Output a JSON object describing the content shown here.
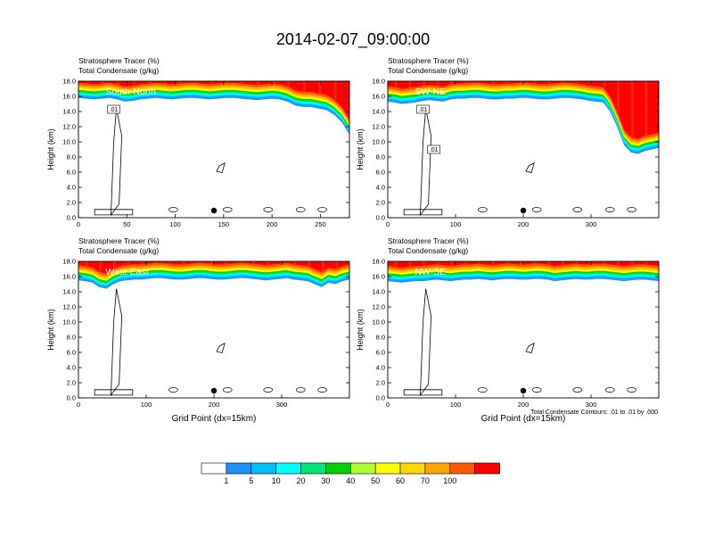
{
  "figure": {
    "title": "2014-02-07_09:00:00",
    "footnote": "Total Condensate Contours: .01 to .01 by .000",
    "colorbar": {
      "levels": [
        "1",
        "5",
        "10",
        "20",
        "30",
        "40",
        "50",
        "60",
        "70",
        "100"
      ],
      "colors": [
        "#ffffff",
        "#1e90ff",
        "#00bfff",
        "#00ffff",
        "#00e676",
        "#00d200",
        "#adff2f",
        "#ffff00",
        "#ffd700",
        "#ffa500",
        "#ff5a00",
        "#ff0000"
      ]
    }
  },
  "chart_data": [
    {
      "type": "heatmap",
      "label_left1": "Stratosphere Tracer   (%)",
      "label_left2": "Total Condensate   (g/kg)",
      "label_right": "(%)",
      "panel_title": "South-North",
      "ylabel": "Height (km)",
      "xlabel": "",
      "xlim": [
        0,
        280
      ],
      "ylim": [
        0,
        18
      ],
      "xticks": [
        0,
        50,
        100,
        150,
        200,
        250
      ],
      "yticks": [
        "0.0",
        "2.0",
        "4.0",
        "6.0",
        "8.0",
        "10.0",
        "12.0",
        "14.0",
        "16.0",
        "18.0"
      ],
      "tracer_base_km": [
        15.8,
        15.7,
        15.6,
        15.7,
        15.8,
        15.6,
        15.3,
        15.4,
        15.6,
        15.7,
        15.8,
        15.7,
        15.6,
        15.7,
        15.8,
        15.8,
        15.7,
        15.6,
        15.7,
        15.8,
        15.8,
        15.7,
        15.6,
        15.5,
        15.6,
        15.7,
        15.6,
        15.3,
        14.8,
        14.6,
        14.6,
        14.4,
        14.2,
        13.6,
        12.6,
        11.0
      ],
      "contour_labels": [
        ".01"
      ]
    },
    {
      "type": "heatmap",
      "label_left1": "Stratosphere Tracer   (%)",
      "label_left2": "Total Condensate   (g/kg)",
      "label_right": "(%)",
      "panel_title": "SW-NE",
      "ylabel": "Height (km)",
      "xlabel": "",
      "xlim": [
        0,
        400
      ],
      "ylim": [
        0,
        18
      ],
      "xticks": [
        0,
        100,
        200,
        300
      ],
      "yticks": [
        "0.0",
        "2.0",
        "4.0",
        "6.0",
        "8.0",
        "10.0",
        "12.0",
        "14.0",
        "16.0",
        "18.0"
      ],
      "tracer_base_km": [
        15.3,
        15.2,
        15.0,
        15.1,
        15.2,
        15.4,
        15.5,
        15.4,
        15.3,
        15.6,
        15.7,
        15.7,
        15.8,
        15.8,
        15.7,
        15.6,
        15.6,
        15.7,
        15.7,
        15.8,
        15.8,
        15.7,
        15.6,
        15.6,
        15.7,
        15.8,
        15.8,
        15.7,
        15.6,
        15.4,
        15.3,
        15.2,
        14.0,
        12.0,
        9.6,
        8.6,
        8.4,
        8.8,
        9.0,
        9.2
      ],
      "contour_labels": [
        ".01",
        ".01"
      ]
    },
    {
      "type": "heatmap",
      "label_left1": "Stratosphere Tracer   (%)",
      "label_left2": "Total Condensate   (g/kg)",
      "label_right": "(%)",
      "panel_title": "West-East",
      "ylabel": "Height (km)",
      "xlabel": "Grid Point (dx=15km)",
      "xlim": [
        0,
        400
      ],
      "ylim": [
        0,
        18
      ],
      "xticks": [
        0,
        100,
        200,
        300
      ],
      "yticks": [
        "0.0",
        "2.0",
        "4.0",
        "6.0",
        "8.0",
        "10.0",
        "12.0",
        "14.0",
        "16.0",
        "18.0"
      ],
      "tracer_base_km": [
        15.5,
        15.4,
        15.2,
        14.6,
        14.4,
        15.0,
        15.4,
        15.5,
        15.6,
        15.6,
        15.7,
        15.8,
        15.8,
        15.7,
        15.6,
        15.6,
        15.7,
        15.8,
        15.8,
        15.7,
        15.6,
        15.6,
        15.7,
        15.8,
        15.8,
        15.7,
        15.6,
        15.5,
        15.6,
        15.7,
        15.8,
        15.6,
        15.5,
        15.4,
        15.0,
        14.6,
        15.2,
        15.0,
        15.4,
        15.6
      ],
      "contour_labels": []
    },
    {
      "type": "heatmap",
      "label_left1": "Stratosphere Tracer   (%)",
      "label_left2": "Total Condensate   (g/kg)",
      "label_right": "(%)",
      "panel_title": "NW-SE",
      "ylabel": "Height (km)",
      "xlabel": "Grid Point (dx=15km)",
      "xlim": [
        0,
        400
      ],
      "ylim": [
        0,
        18
      ],
      "xticks": [
        0,
        100,
        200,
        300
      ],
      "yticks": [
        "0.0",
        "2.0",
        "4.0",
        "6.0",
        "8.0",
        "10.0",
        "12.0",
        "14.0",
        "16.0",
        "18.0"
      ],
      "tracer_base_km": [
        15.4,
        15.3,
        15.2,
        15.3,
        15.4,
        15.4,
        15.5,
        15.6,
        15.5,
        15.4,
        15.5,
        15.6,
        15.6,
        15.7,
        15.6,
        15.5,
        15.6,
        15.7,
        15.7,
        15.6,
        15.6,
        15.7,
        15.7,
        15.6,
        15.4,
        15.5,
        15.6,
        15.7,
        15.6,
        15.6,
        15.7,
        15.7,
        15.6,
        15.5,
        15.4,
        15.5,
        15.6,
        15.6,
        15.5,
        15.4
      ],
      "contour_labels": []
    }
  ]
}
